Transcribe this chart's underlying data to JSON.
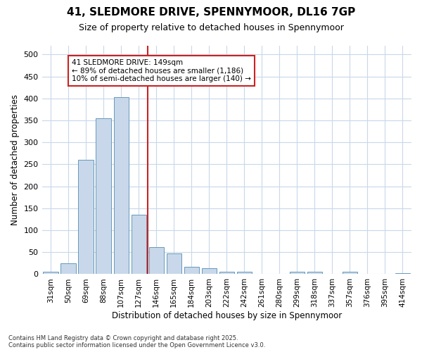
{
  "title": "41, SLEDMORE DRIVE, SPENNYMOOR, DL16 7GP",
  "subtitle": "Size of property relative to detached houses in Spennymoor",
  "xlabel": "Distribution of detached houses by size in Spennymoor",
  "ylabel": "Number of detached properties",
  "categories": [
    "31sqm",
    "50sqm",
    "69sqm",
    "88sqm",
    "107sqm",
    "127sqm",
    "146sqm",
    "165sqm",
    "184sqm",
    "203sqm",
    "222sqm",
    "242sqm",
    "261sqm",
    "280sqm",
    "299sqm",
    "318sqm",
    "337sqm",
    "357sqm",
    "376sqm",
    "395sqm",
    "414sqm"
  ],
  "values": [
    5,
    24,
    260,
    355,
    403,
    135,
    62,
    48,
    16,
    13,
    6,
    5,
    1,
    1,
    6,
    5,
    1,
    5,
    1,
    1,
    2
  ],
  "bar_color": "#c8d8ea",
  "bar_edge_color": "#6699bb",
  "vline_color": "#cc2222",
  "property_label": "41 SLEDMORE DRIVE: 149sqm",
  "pct_smaller": 89,
  "n_smaller": 1186,
  "pct_larger_semi": 10,
  "n_larger_semi": 140,
  "annotation_box_color": "#cc2222",
  "ylim": [
    0,
    520
  ],
  "yticks": [
    0,
    50,
    100,
    150,
    200,
    250,
    300,
    350,
    400,
    450,
    500
  ],
  "background_color": "#ffffff",
  "grid_color": "#c8d8ea",
  "footer_line1": "Contains HM Land Registry data © Crown copyright and database right 2025.",
  "footer_line2": "Contains public sector information licensed under the Open Government Licence v3.0."
}
